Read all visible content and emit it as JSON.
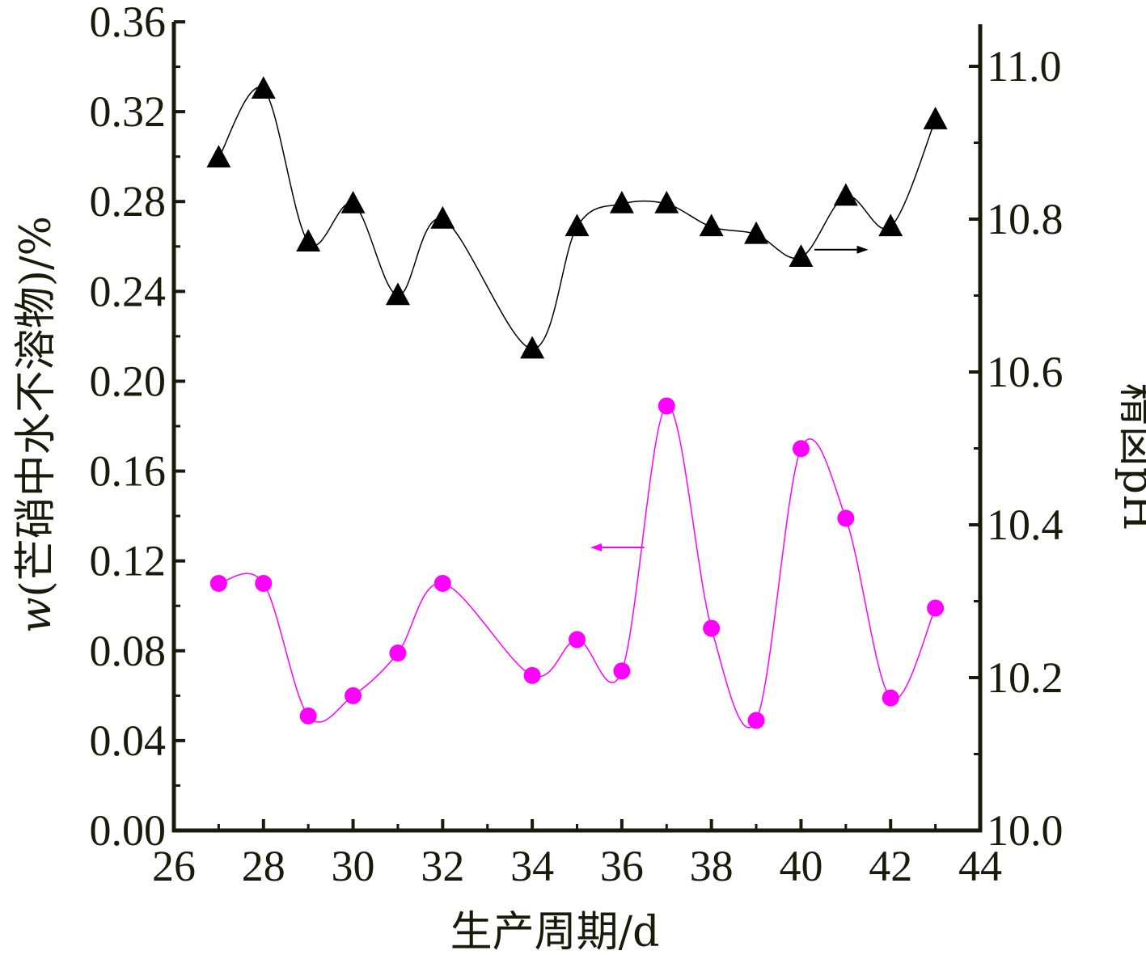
{
  "chart_data": {
    "type": "line",
    "xlabel": "生产周期/d",
    "ylabel_left_italic": "w",
    "ylabel_left_rest": "(芒硝中水不溶物)/%",
    "ylabel_right": "精卤pH",
    "xlim": [
      26,
      44
    ],
    "ylim_left": [
      0.0,
      0.36
    ],
    "ylim_right": [
      10.0,
      11.0
    ],
    "x_ticks": [
      "26",
      "28",
      "30",
      "32",
      "34",
      "36",
      "38",
      "40",
      "42",
      "44"
    ],
    "y_left_ticks": [
      "0.00",
      "0.04",
      "0.08",
      "0.12",
      "0.16",
      "0.20",
      "0.24",
      "0.28",
      "0.32",
      "0.36"
    ],
    "y_right_ticks": [
      "10.0",
      "10.2",
      "10.4",
      "10.6",
      "10.8",
      "11.0"
    ],
    "series": [
      {
        "axis": "left",
        "marker": "circle",
        "color": "#ff00ff",
        "x": [
          27,
          28,
          29,
          30,
          31,
          32,
          34,
          35,
          36,
          37,
          38,
          39,
          40,
          41,
          42,
          43
        ],
        "y": [
          0.11,
          0.11,
          0.051,
          0.06,
          0.079,
          0.11,
          0.069,
          0.085,
          0.071,
          0.189,
          0.09,
          0.049,
          0.17,
          0.139,
          0.059,
          0.099
        ]
      },
      {
        "axis": "right",
        "marker": "triangle",
        "color": "#000000",
        "x": [
          27,
          28,
          29,
          30,
          31,
          32,
          34,
          35,
          36,
          37,
          38,
          39,
          40,
          41,
          42,
          43
        ],
        "y": [
          10.88,
          10.97,
          10.77,
          10.82,
          10.7,
          10.8,
          10.63,
          10.79,
          10.82,
          10.82,
          10.79,
          10.78,
          10.75,
          10.83,
          10.79,
          10.93
        ]
      }
    ],
    "annotations": [
      {
        "target": "right",
        "direction": "right",
        "color": "#000000"
      },
      {
        "target": "left",
        "direction": "left",
        "color": "#ff00ff"
      }
    ]
  }
}
